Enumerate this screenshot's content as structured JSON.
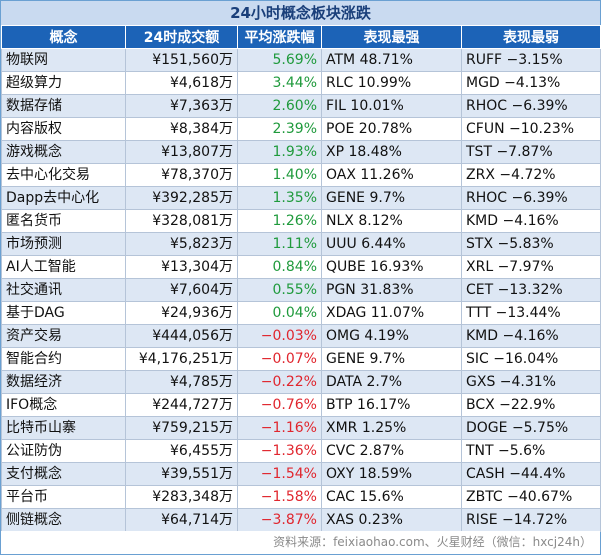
{
  "title": "24小时概念板块涨跌",
  "headers": [
    "概念",
    "24时成交额",
    "平均涨跌幅",
    "表现最强",
    "表现最弱"
  ],
  "rows": [
    {
      "concept": "物联网",
      "volume": "¥151,560万",
      "change": "5.69%",
      "dir": "pos",
      "best": "ATM 48.71%",
      "worst": "RUFF −3.15%"
    },
    {
      "concept": "超级算力",
      "volume": "¥4,618万",
      "change": "3.44%",
      "dir": "pos",
      "best": "RLC 10.99%",
      "worst": "MGD −4.13%"
    },
    {
      "concept": "数据存储",
      "volume": "¥7,363万",
      "change": "2.60%",
      "dir": "pos",
      "best": "FIL 10.01%",
      "worst": "RHOC −6.39%"
    },
    {
      "concept": "内容版权",
      "volume": "¥8,384万",
      "change": "2.39%",
      "dir": "pos",
      "best": "POE 20.78%",
      "worst": "CFUN −10.23%"
    },
    {
      "concept": "游戏概念",
      "volume": "¥13,807万",
      "change": "1.93%",
      "dir": "pos",
      "best": "XP 18.48%",
      "worst": "TST −7.87%"
    },
    {
      "concept": "去中心化交易",
      "volume": "¥78,370万",
      "change": "1.40%",
      "dir": "pos",
      "best": "OAX 11.26%",
      "worst": "ZRX −4.72%"
    },
    {
      "concept": "Dapp去中心化",
      "volume": "¥392,285万",
      "change": "1.35%",
      "dir": "pos",
      "best": "GENE 9.7%",
      "worst": "RHOC −6.39%"
    },
    {
      "concept": "匿名货币",
      "volume": "¥328,081万",
      "change": "1.26%",
      "dir": "pos",
      "best": "NLX 8.12%",
      "worst": "KMD −4.16%"
    },
    {
      "concept": "市场预测",
      "volume": "¥5,823万",
      "change": "1.11%",
      "dir": "pos",
      "best": "UUU 6.44%",
      "worst": "STX −5.83%"
    },
    {
      "concept": "AI人工智能",
      "volume": "¥13,304万",
      "change": "0.84%",
      "dir": "pos",
      "best": "QUBE 16.93%",
      "worst": "XRL −7.97%"
    },
    {
      "concept": "社交通讯",
      "volume": "¥7,604万",
      "change": "0.55%",
      "dir": "pos",
      "best": "PGN 31.83%",
      "worst": "CET −13.32%"
    },
    {
      "concept": "基于DAG",
      "volume": "¥24,936万",
      "change": "0.04%",
      "dir": "pos",
      "best": "XDAG 11.07%",
      "worst": "TTT −13.44%"
    },
    {
      "concept": "资产交易",
      "volume": "¥444,056万",
      "change": "−0.03%",
      "dir": "neg",
      "best": "OMG 4.19%",
      "worst": "KMD −4.16%"
    },
    {
      "concept": "智能合约",
      "volume": "¥4,176,251万",
      "change": "−0.07%",
      "dir": "neg",
      "best": "GENE 9.7%",
      "worst": "SIC −16.04%"
    },
    {
      "concept": "数据经济",
      "volume": "¥4,785万",
      "change": "−0.22%",
      "dir": "neg",
      "best": "DATA 2.7%",
      "worst": "GXS −4.31%"
    },
    {
      "concept": "IFO概念",
      "volume": "¥244,727万",
      "change": "−0.76%",
      "dir": "neg",
      "best": "BTP 16.17%",
      "worst": "BCX −22.9%"
    },
    {
      "concept": "比特币山寨",
      "volume": "¥759,215万",
      "change": "−1.16%",
      "dir": "neg",
      "best": "XMR 1.25%",
      "worst": "DOGE −5.75%"
    },
    {
      "concept": "公证防伪",
      "volume": "¥6,455万",
      "change": "−1.36%",
      "dir": "neg",
      "best": "CVC 2.87%",
      "worst": "TNT −5.6%"
    },
    {
      "concept": "支付概念",
      "volume": "¥39,551万",
      "change": "−1.54%",
      "dir": "neg",
      "best": "OXY 18.59%",
      "worst": "CASH −44.4%"
    },
    {
      "concept": "平台币",
      "volume": "¥283,348万",
      "change": "−1.58%",
      "dir": "neg",
      "best": "CAC 15.6%",
      "worst": "ZBTC −40.67%"
    },
    {
      "concept": "侧链概念",
      "volume": "¥64,714万",
      "change": "−3.87%",
      "dir": "neg",
      "best": "XAS 0.23%",
      "worst": "RISE −14.72%"
    }
  ],
  "footer": "资料来源：feixiaohao.com、火星财经（微信：hxcj24h）",
  "colors": {
    "header_bg": "#1c63b7",
    "title_bg": "#c9daf0",
    "stripe": "#dde7f4",
    "positive": "#1f9a3c",
    "negative": "#e0262e"
  }
}
